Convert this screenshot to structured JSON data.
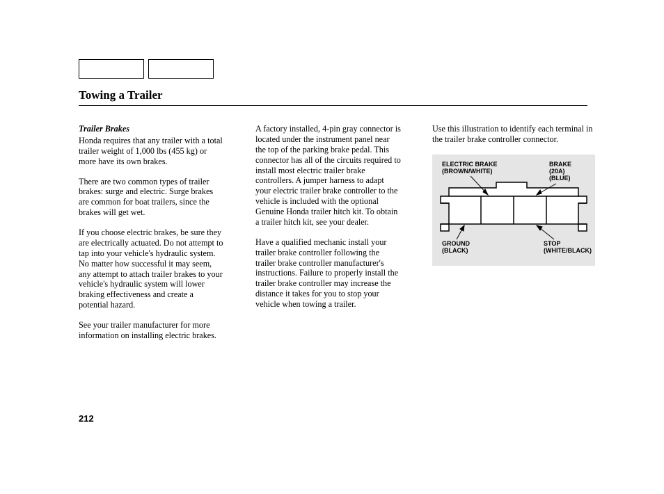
{
  "title": "Towing a Trailer",
  "pageNumber": "212",
  "col1": {
    "heading": "Trailer Brakes",
    "p1": "Honda requires that any trailer with a total trailer weight of 1,000 lbs (455 kg) or more have its own brakes.",
    "p2": "There are two common types of trailer brakes: surge and electric. Surge brakes are common for boat trailers, since the brakes will get wet.",
    "p3": "If you choose electric brakes, be sure they are electrically actuated. Do not attempt to tap into your vehicle's hydraulic system. No matter how successful it may seem, any attempt to attach trailer brakes to your vehicle's hydraulic system will lower braking effectiveness and create a potential hazard.",
    "p4": "See your trailer manufacturer for more information on installing electric brakes."
  },
  "col2": {
    "p1": "A factory installed, 4-pin gray connector is located under the instrument panel near the top of the parking brake pedal. This connector has all of the circuits required to install most electric trailer brake controllers. A jumper harness to adapt your electric trailer brake controller to the vehicle is included with the optional Genuine Honda trailer hitch kit. To obtain a trailer hitch kit, see your dealer.",
    "p2": "Have a qualified mechanic install your trailer brake controller following the trailer brake controller manufacturer's instructions. Failure to properly install the trailer brake controller may increase the distance it takes for you to stop your vehicle when towing a trailer."
  },
  "col3": {
    "p1": "Use this illustration to identify each terminal in the trailer brake controller connector."
  },
  "diagram": {
    "labels": {
      "electricBrake": "ELECTRIC BRAKE\n(BROWN/WHITE)",
      "brake": "BRAKE\n(20A)\n(BLUE)",
      "ground": "GROUND\n(BLACK)",
      "stop": "STOP\n(WHITE/BLACK)"
    },
    "colors": {
      "background": "#e5e5e5",
      "fill": "#ffffff",
      "stroke": "#000000"
    }
  }
}
